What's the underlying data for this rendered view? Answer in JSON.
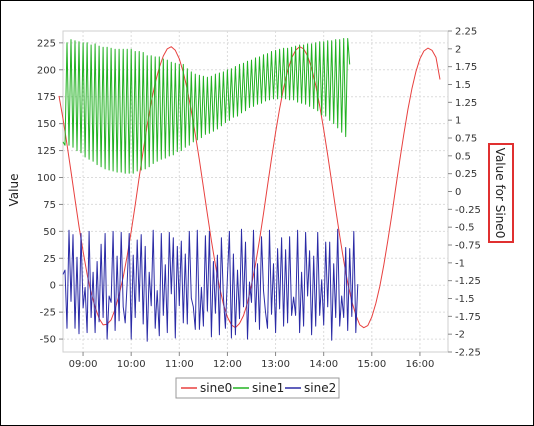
{
  "chart_data": {
    "type": "line",
    "title": "",
    "xlabel": "",
    "ylabel_left": "Value",
    "ylabel_right": "Value for Sine0",
    "x_ticks": [
      "09:00",
      "10:00",
      "11:00",
      "12:00",
      "13:00",
      "14:00",
      "15:00",
      "16:00"
    ],
    "x_range": [
      "08:35",
      "16:35"
    ],
    "y_left": {
      "range": [
        -62,
        236
      ],
      "ticks": [
        "-50",
        "-25",
        "0",
        "25",
        "50",
        "75",
        "100",
        "125",
        "150",
        "175",
        "200",
        "225"
      ]
    },
    "y_right": {
      "range": [
        -2.25,
        2.25
      ],
      "ticks": [
        "-2.25",
        "-2",
        "-1.75",
        "-1.5",
        "-1.25",
        "-1",
        "-0.75",
        "-0.5",
        "-0.25",
        "0",
        "0.25",
        "0.5",
        "0.75",
        "1",
        "1.25",
        "1.5",
        "1.75",
        "2",
        "2.25"
      ]
    },
    "grid": true,
    "legend_placement": "bottom-center",
    "series": [
      {
        "name": "sine0",
        "axis": "right",
        "color": "#e8413f",
        "start": "08:30",
        "step_minutes": 5,
        "values": [
          1.34,
          1.02,
          0.66,
          0.28,
          -0.11,
          -0.49,
          -0.84,
          -1.16,
          -1.42,
          -1.62,
          -1.78,
          -1.87,
          -1.86,
          -1.8,
          -1.65,
          -1.45,
          -1.2,
          -0.9,
          -0.56,
          -0.19,
          0.2,
          0.57,
          0.93,
          1.25,
          1.52,
          1.74,
          1.9,
          2.0,
          2.03,
          1.98,
          1.86,
          1.67,
          1.43,
          1.13,
          0.8,
          0.44,
          0.06,
          -0.32,
          -0.69,
          -1.03,
          -1.33,
          -1.58,
          -1.76,
          -1.87,
          -1.91,
          -1.85,
          -1.74,
          -1.56,
          -1.31,
          -1.02,
          -0.68,
          -0.31,
          0.08,
          0.46,
          0.83,
          1.16,
          1.45,
          1.69,
          1.87,
          1.98,
          2.03,
          2.0,
          1.9,
          1.73,
          1.49,
          1.2,
          0.87,
          0.51,
          0.13,
          -0.25,
          -0.62,
          -0.97,
          -1.28,
          -1.54,
          -1.73,
          -1.87,
          -1.91,
          -1.88,
          -1.76,
          -1.57,
          -1.33,
          -1.03,
          -0.69,
          -0.32,
          0.07,
          0.45,
          0.81,
          1.15,
          1.44,
          1.68,
          1.86,
          1.97,
          2.01,
          1.98,
          1.88,
          1.57
        ]
      },
      {
        "name": "sine1",
        "axis": "left",
        "color": "#22b222",
        "start": "08:35",
        "step_minutes": 2.5,
        "values": [
          133,
          130,
          225,
          130,
          228,
          128,
          227,
          125,
          226,
          123,
          225,
          119,
          225,
          117,
          223,
          115,
          224,
          112,
          222,
          110,
          221,
          108,
          221,
          107,
          220,
          106,
          219,
          105,
          219,
          105,
          219,
          104,
          219,
          104,
          219,
          104,
          217,
          106,
          217,
          107,
          216,
          108,
          213,
          110,
          213,
          113,
          212,
          115,
          212,
          117,
          210,
          118,
          209,
          120,
          207,
          121,
          206,
          124,
          205,
          125,
          205,
          128,
          201,
          130,
          198,
          133,
          196,
          135,
          195,
          137,
          194,
          140,
          193,
          141,
          194,
          143,
          196,
          145,
          197,
          148,
          198,
          151,
          200,
          153,
          201,
          156,
          203,
          157,
          205,
          160,
          206,
          162,
          208,
          165,
          209,
          166,
          211,
          168,
          212,
          169,
          214,
          171,
          215,
          172,
          217,
          173,
          218,
          173,
          219,
          174,
          220,
          173,
          220,
          172,
          221,
          172,
          222,
          170,
          223,
          169,
          223,
          168,
          224,
          166,
          224,
          164,
          225,
          162,
          226,
          158,
          226,
          157,
          227,
          153,
          227,
          150,
          228,
          146,
          228,
          142,
          229,
          138,
          229,
          205
        ]
      },
      {
        "name": "sine2",
        "axis": "left",
        "color": "#2b2ba6",
        "start": "08:35",
        "step_minutes": 2.5,
        "values": [
          10,
          14,
          -40,
          51,
          -15,
          47,
          -40,
          26,
          -45,
          48,
          -21,
          -2,
          -44,
          50,
          -30,
          12,
          -44,
          22,
          -34,
          38,
          -30,
          48,
          -50,
          -10,
          -16,
          50,
          -42,
          27,
          -33,
          49,
          -20,
          -35,
          3,
          48,
          -50,
          28,
          -30,
          42,
          -15,
          47,
          -36,
          36,
          -52,
          12,
          -19,
          51,
          -40,
          -5,
          -47,
          48,
          -28,
          19,
          -44,
          49,
          -8,
          44,
          -49,
          36,
          -19,
          41,
          -35,
          29,
          -36,
          50,
          -12,
          -20,
          -41,
          51,
          -41,
          -2,
          -38,
          46,
          -24,
          50,
          -48,
          22,
          -26,
          28,
          -46,
          44,
          -11,
          -40,
          7,
          50,
          -49,
          29,
          -46,
          14,
          -31,
          52,
          -20,
          40,
          -50,
          3,
          -16,
          51,
          -34,
          20,
          -41,
          45,
          -5,
          -25,
          -40,
          51,
          -27,
          20,
          -44,
          34,
          -22,
          44,
          -38,
          33,
          -35,
          45,
          -28,
          -11,
          -28,
          51,
          -44,
          12,
          -38,
          49,
          -10,
          32,
          -46,
          27,
          -38,
          49,
          -28,
          5,
          -37,
          40,
          -20,
          40,
          -51,
          20,
          -30,
          52,
          -38,
          -10,
          -30,
          35,
          -42,
          34,
          -29,
          50,
          -44,
          1
        ]
      }
    ]
  },
  "legend": {
    "items": [
      {
        "label": "sine0",
        "color": "#e8413f"
      },
      {
        "label": "sine1",
        "color": "#22b222"
      },
      {
        "label": "sine2",
        "color": "#2b2ba6"
      }
    ]
  }
}
